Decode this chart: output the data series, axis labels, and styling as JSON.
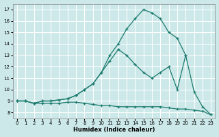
{
  "xlabel": "Humidex (Indice chaleur)",
  "bg_color": "#cce8e8",
  "grid_color": "#ffffff",
  "line_color": "#1a7a6e",
  "xlim": [
    -0.5,
    23.5
  ],
  "ylim": [
    7.5,
    17.5
  ],
  "xticks": [
    0,
    1,
    2,
    3,
    4,
    5,
    6,
    7,
    8,
    9,
    10,
    11,
    12,
    13,
    14,
    15,
    16,
    17,
    18,
    19,
    20,
    21,
    22,
    23
  ],
  "yticks": [
    8,
    9,
    10,
    11,
    12,
    13,
    14,
    15,
    16,
    17
  ],
  "line1_x": [
    0,
    1,
    2,
    3,
    4,
    5,
    6,
    7,
    8,
    9,
    10,
    11,
    12,
    13,
    14,
    15,
    16,
    17,
    18,
    19,
    20,
    21,
    22,
    23
  ],
  "line1_y": [
    9,
    9,
    8.8,
    9,
    9,
    9.1,
    9.2,
    9.5,
    10.0,
    10.5,
    11.5,
    13.0,
    14.0,
    15.3,
    16.2,
    17.0,
    16.7,
    16.2,
    15.0,
    14.5,
    13.0,
    9.8,
    8.5,
    7.8
  ],
  "line2_x": [
    0,
    1,
    2,
    3,
    4,
    5,
    6,
    7,
    8,
    9,
    10,
    11,
    12,
    13,
    14,
    15,
    16,
    17,
    18,
    19,
    20
  ],
  "line2_y": [
    9,
    9,
    8.8,
    9,
    9,
    9.1,
    9.2,
    9.5,
    10.0,
    10.5,
    11.5,
    12.5,
    13.5,
    13.0,
    12.2,
    11.5,
    11.0,
    11.5,
    12.0,
    10.0,
    13.0
  ],
  "line3_x": [
    0,
    1,
    2,
    3,
    4,
    5,
    6,
    7,
    8,
    9,
    10,
    11,
    12,
    13,
    14,
    15,
    16,
    17,
    18,
    19,
    20,
    21,
    22,
    23
  ],
  "line3_y": [
    9,
    9,
    8.8,
    8.8,
    8.8,
    8.8,
    8.9,
    8.9,
    8.8,
    8.7,
    8.6,
    8.6,
    8.5,
    8.5,
    8.5,
    8.5,
    8.5,
    8.5,
    8.4,
    8.3,
    8.3,
    8.2,
    8.1,
    7.8
  ]
}
